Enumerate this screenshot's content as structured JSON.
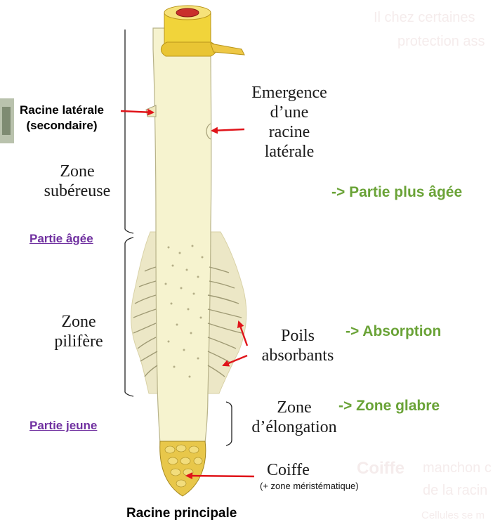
{
  "ghost_text": {
    "top_line1": "Il chez certaines",
    "top_line2": "protection ass",
    "bottom_title": "Coiffe",
    "bottom_line1": "manchon c",
    "bottom_line2": "de la racin",
    "bottom_line3": "Cellules se m"
  },
  "labels": {
    "lateral_root_line1": "Racine latérale",
    "lateral_root_line2": "(secondaire)",
    "zone_subereuse_line1": "Zone",
    "zone_subereuse_line2": "subéreuse",
    "partie_agee": "Partie âgée",
    "zone_pilifere_line1": "Zone",
    "zone_pilifere_line2": "pilifère",
    "partie_jeune": "Partie jeune",
    "emergence_line1": "Emergence",
    "emergence_line2": "d’une",
    "emergence_line3": "racine",
    "emergence_line4": "latérale",
    "poils_line1": "Poils",
    "poils_line2": "absorbants",
    "elongation_line1": "Zone",
    "elongation_line2": "d’élongation",
    "coiffe": "Coiffe",
    "coiffe_note": "(+ zone méristématique)",
    "caption": "Racine principale"
  },
  "annotations": {
    "partie_plus_agee": "-> Partie plus âgée",
    "absorption": "-> Absorption",
    "zone_glabre": "-> Zone glabre"
  },
  "colors": {
    "root_body": "#f6f3cf",
    "root_top": "#f1d43a",
    "hair_zone": "#ece7c6",
    "cap": "#e8c74a",
    "arrow": "#e0141a",
    "green_text": "#6aa337",
    "purple_text": "#7030a0"
  }
}
